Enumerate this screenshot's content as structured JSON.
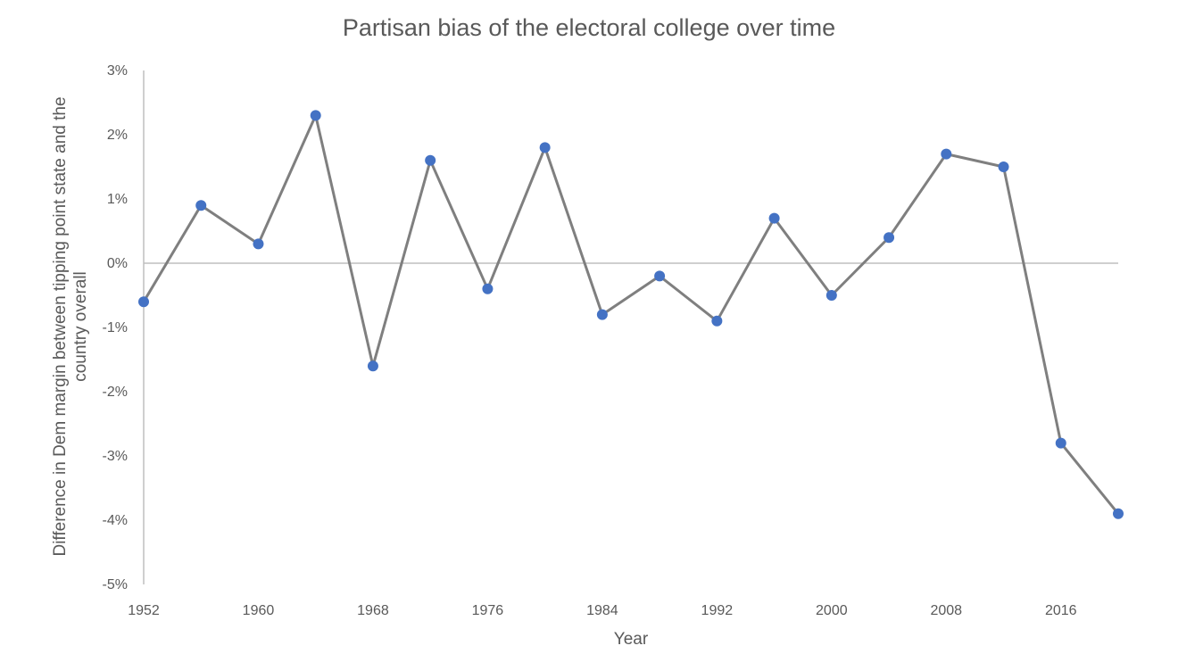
{
  "chart_data": {
    "type": "line",
    "title": "Partisan bias of the electoral college over time",
    "xlabel": "Year",
    "ylabel": "Difference in Dem margin between tipping point state and the country overall",
    "ylabel_lines": [
      "Difference in Dem margin between tipping point state and the",
      "country overall"
    ],
    "x": [
      1952,
      1956,
      1960,
      1964,
      1968,
      1972,
      1976,
      1980,
      1984,
      1988,
      1992,
      1996,
      2000,
      2004,
      2008,
      2012,
      2016,
      2020
    ],
    "series": [
      {
        "values": [
          -0.6,
          0.9,
          0.3,
          2.3,
          -1.6,
          1.6,
          -0.4,
          1.8,
          -0.8,
          -0.2,
          -0.9,
          0.7,
          -0.5,
          0.4,
          1.7,
          1.5,
          -2.8,
          -3.9
        ]
      }
    ],
    "xlim": [
      1952,
      2020
    ],
    "xticks": [
      1952,
      1960,
      1968,
      1976,
      1984,
      1992,
      2000,
      2008,
      2016
    ],
    "xtick_labels": [
      "1952",
      "1960",
      "1968",
      "1976",
      "1984",
      "1992",
      "2000",
      "2008",
      "2016"
    ],
    "ylim": [
      -5,
      3
    ],
    "yticks": [
      -5,
      -4,
      -3,
      -2,
      -1,
      0,
      1,
      2,
      3
    ],
    "ytick_labels": [
      "-5%",
      "-4%",
      "-3%",
      "-2%",
      "-1%",
      "0%",
      "1%",
      "2%",
      "3%"
    ],
    "grid": false,
    "legend": "none",
    "colors": {
      "line": "#7f7f7f",
      "marker": "#4472c4",
      "axis": "#bfbfbf",
      "text": "#595959"
    }
  }
}
